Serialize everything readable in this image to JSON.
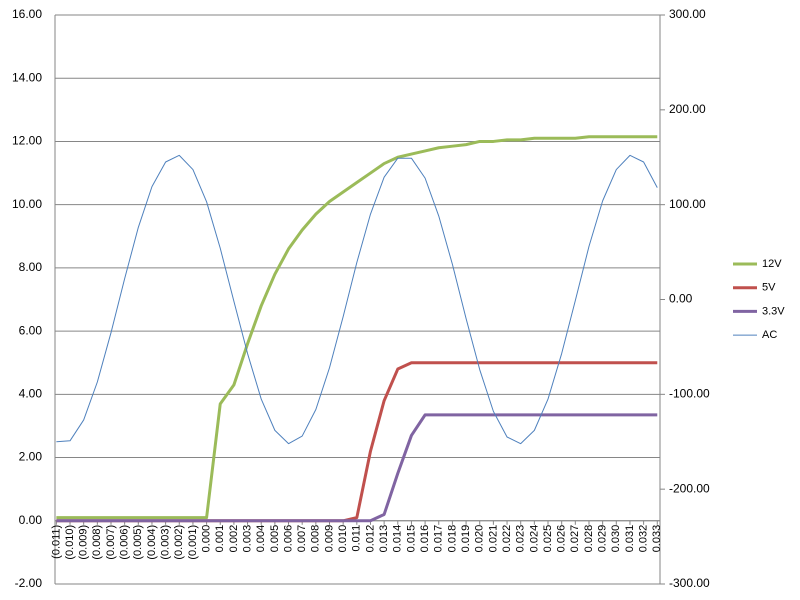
{
  "chart_data": {
    "type": "line",
    "x": [
      -0.011,
      -0.01,
      -0.009,
      -0.008,
      -0.007,
      -0.006,
      -0.005,
      -0.004,
      -0.003,
      -0.002,
      -0.001,
      0.0,
      0.001,
      0.002,
      0.003,
      0.004,
      0.005,
      0.006,
      0.007,
      0.008,
      0.009,
      0.01,
      0.011,
      0.012,
      0.013,
      0.014,
      0.015,
      0.016,
      0.017,
      0.018,
      0.019,
      0.02,
      0.021,
      0.022,
      0.023,
      0.024,
      0.025,
      0.026,
      0.027,
      0.028,
      0.029,
      0.03,
      0.031,
      0.032,
      0.033
    ],
    "xlim": [
      -0.0111,
      0.0332
    ],
    "xticks": [
      {
        "value": -0.011,
        "label": "(0.011)"
      },
      {
        "value": -0.01,
        "label": "(0.010)"
      },
      {
        "value": -0.009,
        "label": "(0.009)"
      },
      {
        "value": -0.008,
        "label": "(0.008)"
      },
      {
        "value": -0.007,
        "label": "(0.007)"
      },
      {
        "value": -0.006,
        "label": "(0.006)"
      },
      {
        "value": -0.005,
        "label": "(0.005)"
      },
      {
        "value": -0.004,
        "label": "(0.004)"
      },
      {
        "value": -0.003,
        "label": "(0.003)"
      },
      {
        "value": -0.002,
        "label": "(0.002)"
      },
      {
        "value": -0.001,
        "label": "(0.001)"
      },
      {
        "value": 0,
        "label": "0.000"
      },
      0.001,
      0.002,
      0.003,
      0.004,
      0.005,
      0.006,
      0.007,
      0.008,
      0.009,
      {
        "value": 0.01,
        "label": "0.010"
      },
      0.011,
      0.012,
      0.013,
      0.014,
      0.015,
      0.016,
      0.017,
      0.018,
      0.019,
      {
        "value": 0.02,
        "label": "0.020"
      },
      0.021,
      0.022,
      0.023,
      0.024,
      0.025,
      0.026,
      0.027,
      0.028,
      0.029,
      {
        "value": 0.03,
        "label": "0.030"
      },
      0.031,
      0.032,
      0.033
    ],
    "ylim": [
      -2,
      16
    ],
    "yticks": [
      {
        "value": -2,
        "label": "-2.00"
      },
      {
        "value": 0,
        "label": "0.00"
      },
      {
        "value": 2,
        "label": "2.00"
      },
      {
        "value": 4,
        "label": "4.00"
      },
      {
        "value": 6,
        "label": "6.00"
      },
      {
        "value": 8,
        "label": "8.00"
      },
      {
        "value": 10,
        "label": "10.00"
      },
      {
        "value": 12,
        "label": "12.00"
      },
      {
        "value": 14,
        "label": "14.00"
      },
      {
        "value": 16,
        "label": "16.00"
      }
    ],
    "y2lim": [
      -300,
      300
    ],
    "y2ticks": [
      {
        "value": -300,
        "label": "-300.00"
      },
      {
        "value": -200,
        "label": "-200.00"
      },
      {
        "value": -100,
        "label": "-100.00"
      },
      {
        "value": 0,
        "label": "0.00"
      },
      {
        "value": 100,
        "label": "100.00"
      },
      {
        "value": 200,
        "label": "200.00"
      },
      {
        "value": 300,
        "label": "300.00"
      }
    ],
    "grid": true,
    "legend": "right",
    "series": [
      {
        "name": "12V",
        "color": "#9bbb59",
        "width": 3,
        "values": [
          0.1,
          0.1,
          0.1,
          0.1,
          0.1,
          0.1,
          0.1,
          0.1,
          0.1,
          0.1,
          0.1,
          0.1,
          3.7,
          4.3,
          5.6,
          6.8,
          7.8,
          8.6,
          9.2,
          9.7,
          10.1,
          10.4,
          10.7,
          11.0,
          11.3,
          11.5,
          11.6,
          11.7,
          11.8,
          11.85,
          11.9,
          12.0,
          12.0,
          12.05,
          12.05,
          12.1,
          12.1,
          12.1,
          12.1,
          12.15,
          12.15,
          12.15,
          12.15,
          12.15,
          12.15
        ]
      },
      {
        "name": "5V",
        "color": "#c0504d",
        "width": 3,
        "values": [
          0,
          0,
          0,
          0,
          0,
          0,
          0,
          0,
          0,
          0,
          0,
          0,
          0,
          0,
          0,
          0,
          0,
          0,
          0,
          0,
          0,
          0,
          0.1,
          2.2,
          3.8,
          4.8,
          5.0,
          5.0,
          5.0,
          5.0,
          5.0,
          5.0,
          5.0,
          5.0,
          5.0,
          5.0,
          5.0,
          5.0,
          5.0,
          5.0,
          5.0,
          5.0,
          5.0,
          5.0,
          5.0
        ]
      },
      {
        "name": "3.3V",
        "color": "#8064a2",
        "width": 3,
        "values": [
          0,
          0,
          0,
          0,
          0,
          0,
          0,
          0,
          0,
          0,
          0,
          0,
          0,
          0,
          0,
          0,
          0,
          0,
          0,
          0,
          0,
          0,
          0,
          0,
          0.2,
          1.5,
          2.7,
          3.35,
          3.35,
          3.35,
          3.35,
          3.35,
          3.35,
          3.35,
          3.35,
          3.35,
          3.35,
          3.35,
          3.35,
          3.35,
          3.35,
          3.35,
          3.35,
          3.35,
          3.35
        ]
      },
      {
        "name": "AC",
        "color": "#4f81bd",
        "width": 1,
        "axis": "y2",
        "values": [
          -150,
          -149,
          -127,
          -87,
          -35,
          22,
          76,
          119,
          145,
          152,
          137,
          103,
          54,
          -2,
          -57,
          -105,
          -138,
          -152,
          -144,
          -116,
          -72,
          -18,
          39,
          90,
          129,
          149,
          149,
          128,
          88,
          37,
          -20,
          -74,
          -118,
          -145,
          -152,
          -138,
          -105,
          -57,
          -1,
          56,
          104,
          137,
          152,
          145,
          118
        ]
      }
    ]
  }
}
